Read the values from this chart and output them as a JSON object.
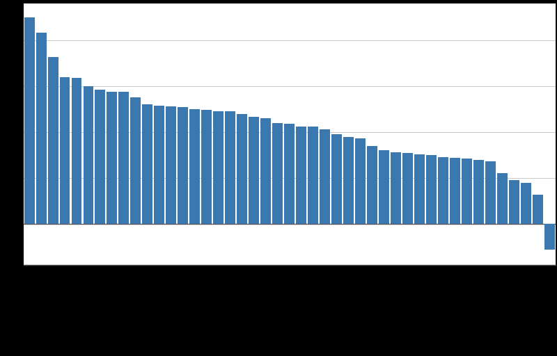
{
  "values": [
    22.5,
    20.8,
    18.2,
    16.0,
    15.9,
    15.0,
    14.6,
    14.4,
    14.4,
    13.8,
    13.0,
    12.9,
    12.8,
    12.7,
    12.5,
    12.4,
    12.3,
    12.3,
    12.0,
    11.7,
    11.5,
    11.0,
    10.9,
    10.6,
    10.6,
    10.3,
    9.8,
    9.5,
    9.3,
    8.5,
    8.0,
    7.8,
    7.7,
    7.6,
    7.5,
    7.3,
    7.2,
    7.1,
    7.0,
    6.8,
    5.5,
    4.8,
    4.5,
    3.2,
    -2.8
  ],
  "bar_color": "#3b78b0",
  "background_color": "#000000",
  "plot_bg_color": "#ffffff",
  "grid_color": "#c8c8c8",
  "ylim_min": -4.5,
  "ylim_max": 24.0
}
